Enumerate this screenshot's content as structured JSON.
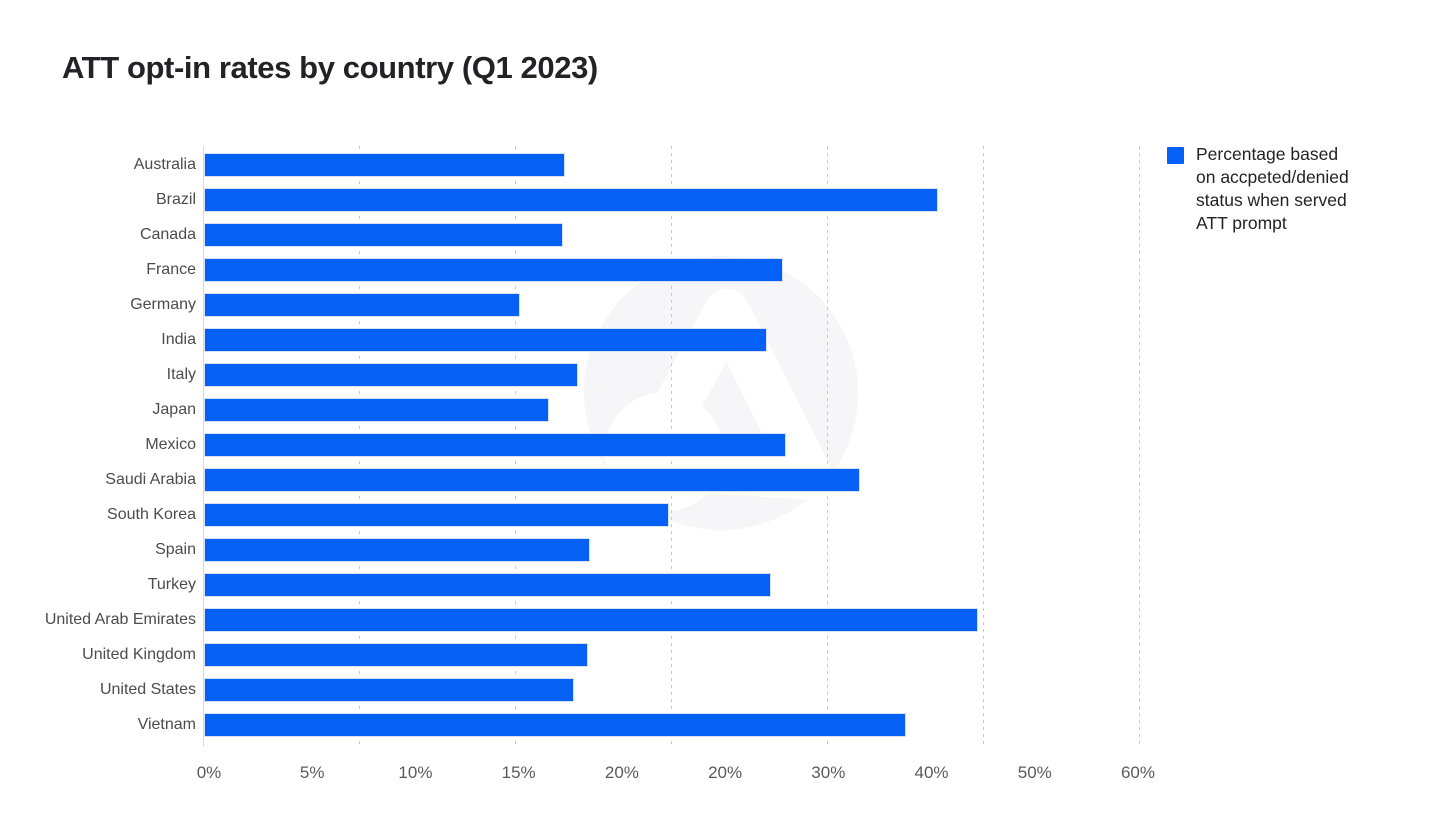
{
  "chart_data": {
    "type": "bar",
    "orientation": "horizontal",
    "title": "ATT opt-in rates by country (Q1 2023)",
    "categories": [
      "Australia",
      "Brazil",
      "Canada",
      "France",
      "Germany",
      "India",
      "Italy",
      "Japan",
      "Mexico",
      "Saudi Arabia",
      "South Korea",
      "Spain",
      "Turkey",
      "United Arab Emirates",
      "United Kingdom",
      "United States",
      "Vietnam"
    ],
    "values": [
      17.4,
      40.7,
      17.3,
      27.9,
      15.2,
      27.1,
      18.0,
      16.6,
      28.0,
      33.2,
      22.4,
      18.6,
      27.3,
      44.6,
      18.5,
      17.8,
      37.6
    ],
    "unit": "%",
    "x_tick_labels": [
      "0%",
      "5%",
      "10%",
      "15%",
      "20%",
      "20%",
      "30%",
      "40%",
      "50%",
      "60%"
    ],
    "xlabel": "",
    "ylabel": "",
    "xlim_label_range": [
      "0%",
      "60%"
    ],
    "grid": "vertical-dotted",
    "bar_color": "#0561f5",
    "legend_position": "top-right"
  },
  "legend": {
    "swatch_color": "#0561f5",
    "lines": [
      "Percentage based",
      "on accpeted/denied",
      "status when served",
      "ATT prompt"
    ],
    "text": "Percentage based on accpeted/denied status when served ATT prompt"
  },
  "colors": {
    "bar": "#0561f5",
    "title_text": "#232327",
    "label_text": "#4c4c50",
    "tick_text": "#5a5a5e",
    "gridline": "#c7c8cc",
    "axis_line": "#dadadd",
    "watermark_circle": "#f6f6f8"
  }
}
